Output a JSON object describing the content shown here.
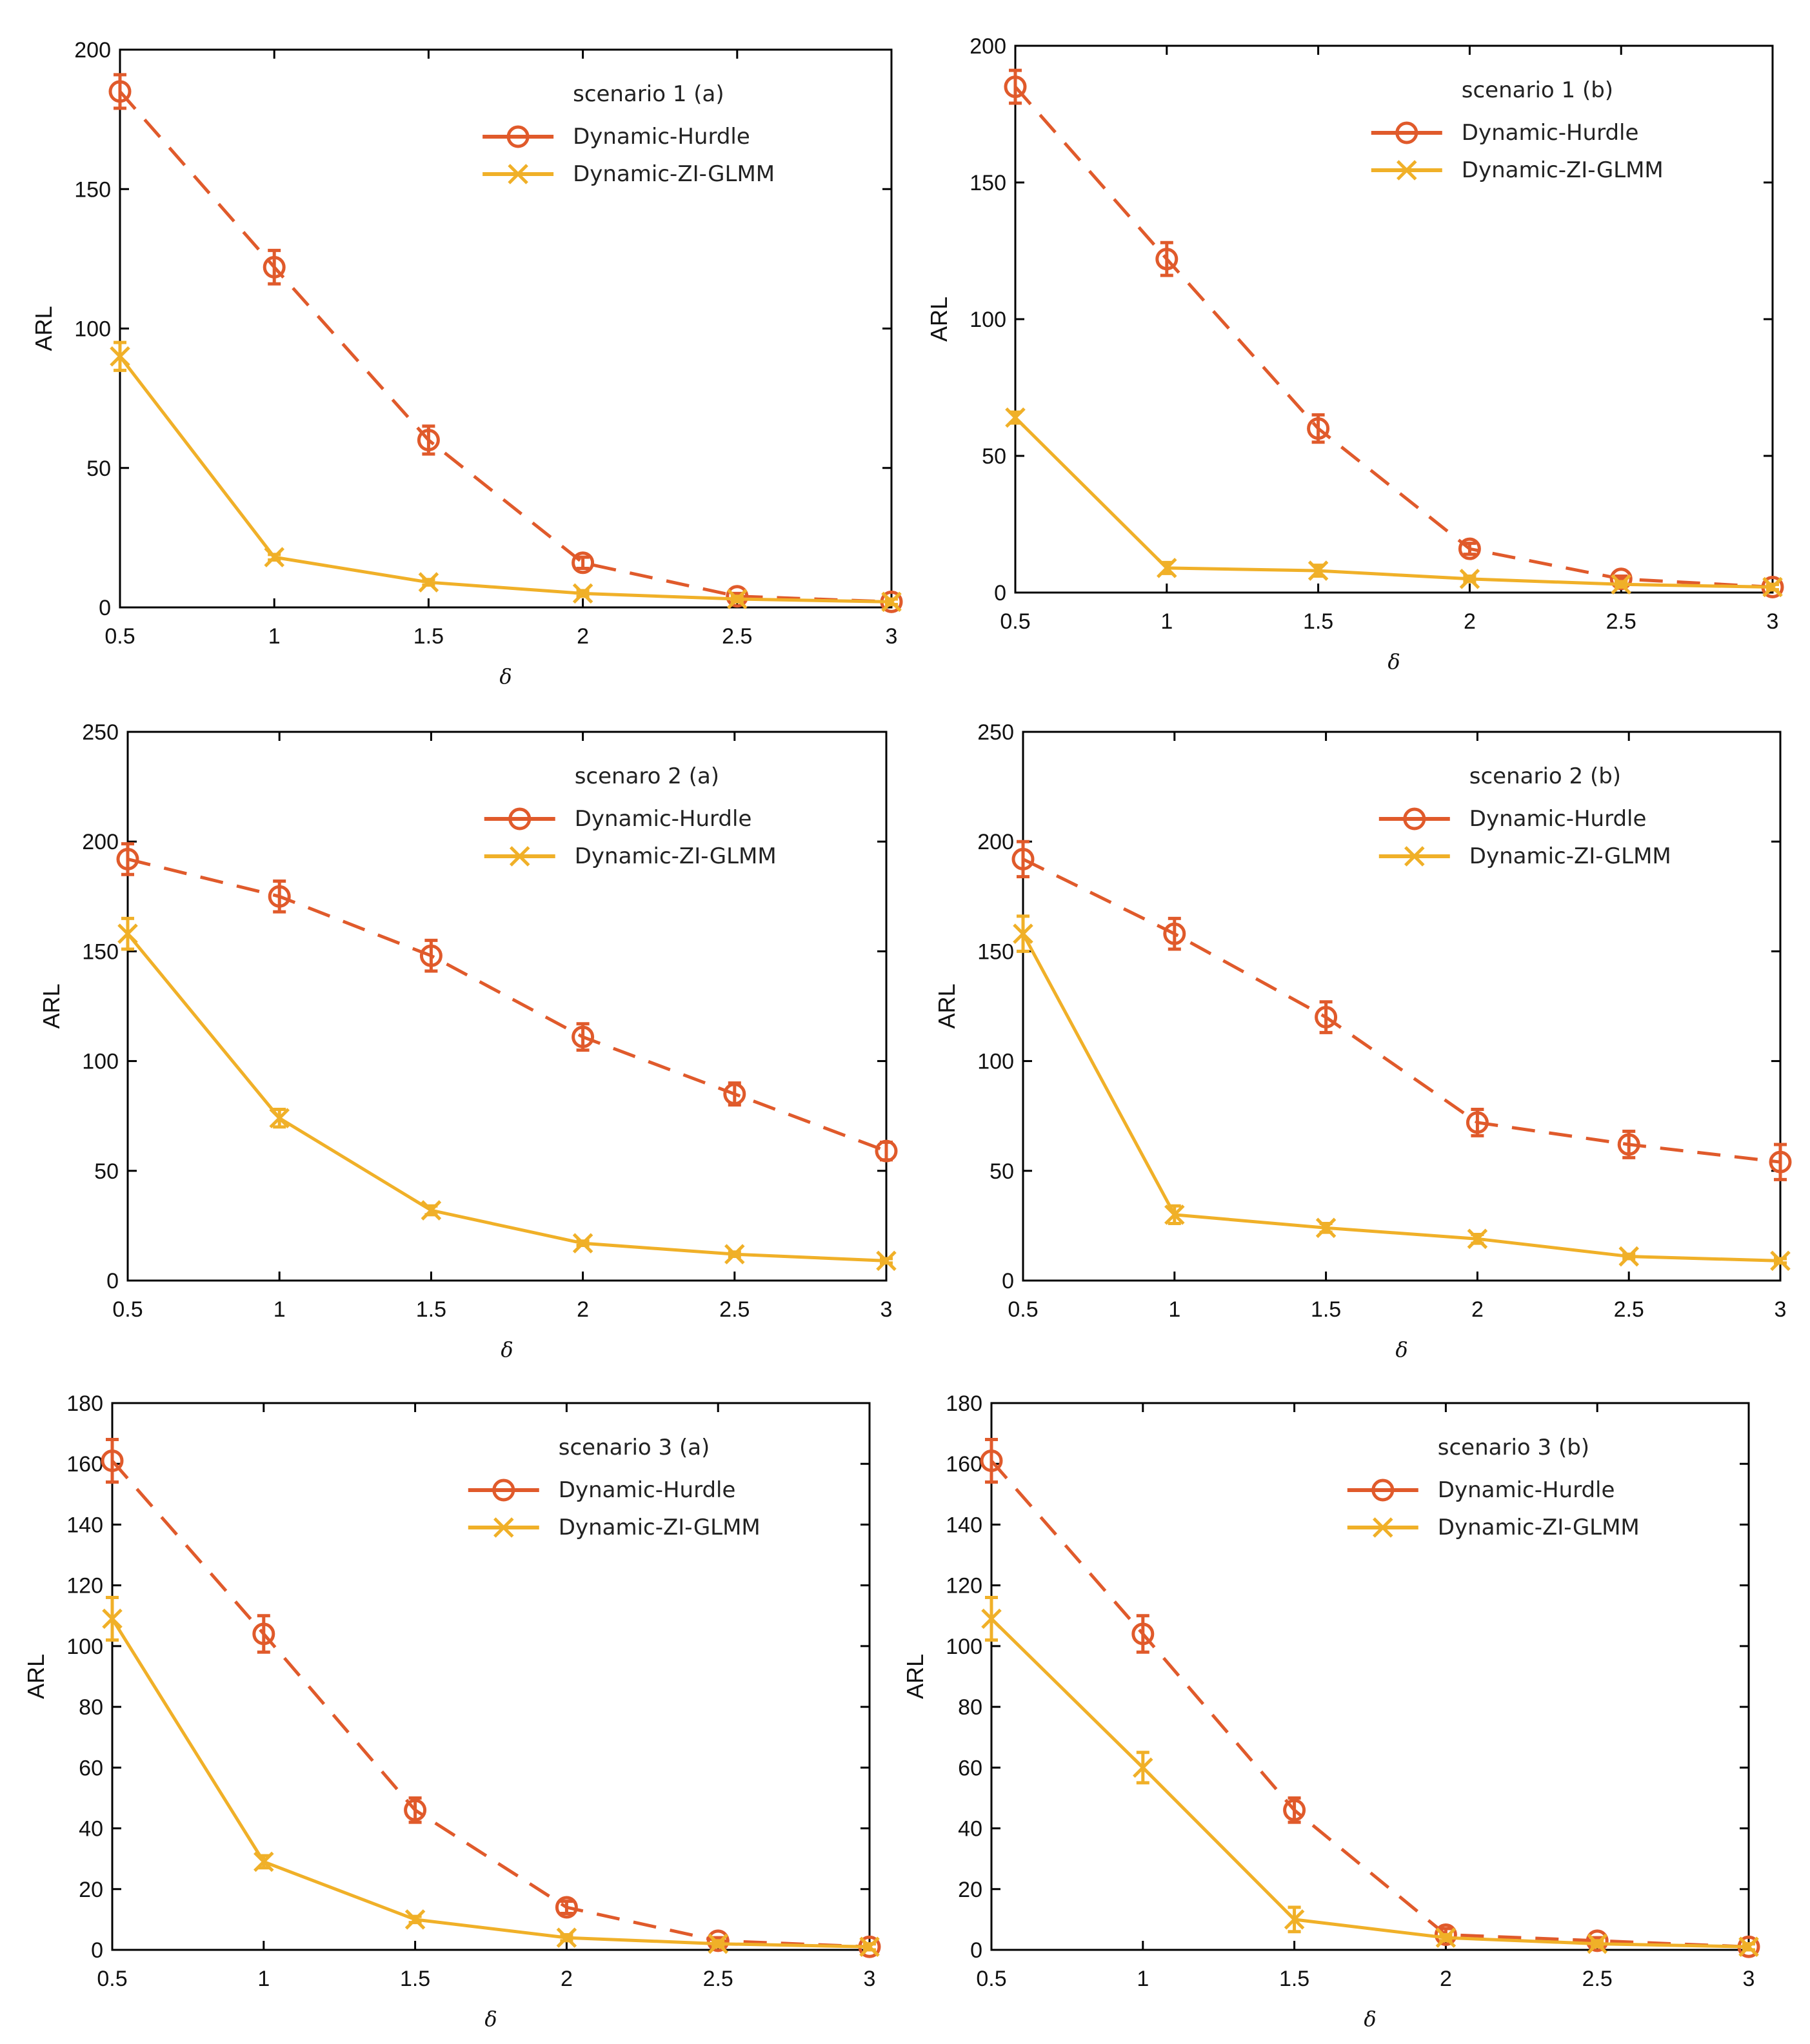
{
  "colors": {
    "hurdle": "#e05a2b",
    "zi": "#f0b028",
    "axis": "#000000"
  },
  "chart_data": [
    {
      "type": "line",
      "title": "scenario 1 (a)",
      "xlabel": "δ",
      "ylabel": "ARL",
      "x": [
        0.5,
        1,
        1.5,
        2,
        2.5,
        3
      ],
      "xlim": [
        0.5,
        3
      ],
      "ylim": [
        0,
        200
      ],
      "xticks": [
        "0.5",
        "1",
        "1.5",
        "2",
        "2.5",
        "3"
      ],
      "yticks": [
        0,
        50,
        100,
        150,
        200
      ],
      "legend_position": "top-right",
      "series": [
        {
          "name": "Dynamic-Hurdle",
          "style": "dashed",
          "marker": "circle",
          "values": [
            185,
            122,
            60,
            16,
            4,
            2
          ],
          "errors": [
            6,
            6,
            5,
            2,
            1,
            1
          ]
        },
        {
          "name": "Dynamic-ZI-GLMM",
          "style": "solid",
          "marker": "x",
          "values": [
            90,
            18,
            9,
            5,
            3,
            2
          ],
          "errors": [
            5,
            1,
            1,
            1,
            1,
            1
          ]
        }
      ]
    },
    {
      "type": "line",
      "title": "scenario 1 (b)",
      "xlabel": "δ",
      "ylabel": "ARL",
      "x": [
        0.5,
        1,
        1.5,
        2,
        2.5,
        3
      ],
      "xlim": [
        0.5,
        3
      ],
      "ylim": [
        0,
        200
      ],
      "xticks": [
        "0.5",
        "1",
        "1.5",
        "2",
        "2.5",
        "3"
      ],
      "yticks": [
        0,
        50,
        100,
        150,
        200
      ],
      "legend_position": "top-right",
      "series": [
        {
          "name": "Dynamic-Hurdle",
          "style": "dashed",
          "marker": "circle",
          "values": [
            185,
            122,
            60,
            16,
            5,
            2
          ],
          "errors": [
            6,
            6,
            5,
            2,
            1,
            1
          ]
        },
        {
          "name": "Dynamic-ZI-GLMM",
          "style": "solid",
          "marker": "x",
          "values": [
            64,
            9,
            8,
            5,
            3,
            2
          ],
          "errors": [
            2,
            2,
            2,
            1,
            1,
            1
          ]
        }
      ]
    },
    {
      "type": "line",
      "title": "scenaro 2 (a)",
      "xlabel": "δ",
      "ylabel": "ARL",
      "x": [
        0.5,
        1,
        1.5,
        2,
        2.5,
        3
      ],
      "xlim": [
        0.5,
        3
      ],
      "ylim": [
        0,
        250
      ],
      "xticks": [
        "0.5",
        "1",
        "1.5",
        "2",
        "2.5",
        "3"
      ],
      "yticks": [
        0,
        50,
        100,
        150,
        200,
        250
      ],
      "legend_position": "top-right",
      "series": [
        {
          "name": "Dynamic-Hurdle",
          "style": "dashed",
          "marker": "circle",
          "values": [
            192,
            175,
            148,
            111,
            85,
            59
          ],
          "errors": [
            7,
            7,
            7,
            6,
            5,
            4
          ]
        },
        {
          "name": "Dynamic-ZI-GLMM",
          "style": "solid",
          "marker": "x",
          "values": [
            158,
            74,
            32,
            17,
            12,
            9
          ],
          "errors": [
            7,
            4,
            2,
            1,
            1,
            1
          ]
        }
      ]
    },
    {
      "type": "line",
      "title": "scenario 2 (b)",
      "xlabel": "δ",
      "ylabel": "ARL",
      "x": [
        0.5,
        1,
        1.5,
        2,
        2.5,
        3
      ],
      "xlim": [
        0.5,
        3
      ],
      "ylim": [
        0,
        250
      ],
      "xticks": [
        "0.5",
        "1",
        "1.5",
        "2",
        "2.5",
        "3"
      ],
      "yticks": [
        0,
        50,
        100,
        150,
        200,
        250
      ],
      "legend_position": "top-right",
      "series": [
        {
          "name": "Dynamic-Hurdle",
          "style": "dashed",
          "marker": "circle",
          "values": [
            192,
            158,
            120,
            72,
            62,
            54
          ],
          "errors": [
            8,
            7,
            7,
            6,
            6,
            8
          ]
        },
        {
          "name": "Dynamic-ZI-GLMM",
          "style": "solid",
          "marker": "x",
          "values": [
            158,
            30,
            24,
            19,
            11,
            9
          ],
          "errors": [
            8,
            4,
            2,
            2,
            1,
            1
          ]
        }
      ]
    },
    {
      "type": "line",
      "title": "scenario 3 (a)",
      "xlabel": "δ",
      "ylabel": "ARL",
      "x": [
        0.5,
        1,
        1.5,
        2,
        2.5,
        3
      ],
      "xlim": [
        0.5,
        3
      ],
      "ylim": [
        0,
        180
      ],
      "xticks": [
        "0.5",
        "1",
        "1.5",
        "2",
        "2.5",
        "3"
      ],
      "yticks": [
        0,
        20,
        40,
        60,
        80,
        100,
        120,
        140,
        160,
        180
      ],
      "legend_position": "top-right",
      "series": [
        {
          "name": "Dynamic-Hurdle",
          "style": "dashed",
          "marker": "circle",
          "values": [
            161,
            104,
            46,
            14,
            3,
            1
          ],
          "errors": [
            7,
            6,
            4,
            2,
            1,
            1
          ]
        },
        {
          "name": "Dynamic-ZI-GLMM",
          "style": "solid",
          "marker": "x",
          "values": [
            109,
            29,
            10,
            4,
            2,
            1
          ],
          "errors": [
            7,
            2,
            1,
            1,
            1,
            1
          ]
        }
      ]
    },
    {
      "type": "line",
      "title": "scenario 3 (b)",
      "xlabel": "δ",
      "ylabel": "ARL",
      "x": [
        0.5,
        1,
        1.5,
        2,
        2.5,
        3
      ],
      "xlim": [
        0.5,
        3
      ],
      "ylim": [
        0,
        180
      ],
      "xticks": [
        "0.5",
        "1",
        "1.5",
        "2",
        "2.5",
        "3"
      ],
      "yticks": [
        0,
        20,
        40,
        60,
        80,
        100,
        120,
        140,
        160,
        180
      ],
      "legend_position": "top-right",
      "series": [
        {
          "name": "Dynamic-Hurdle",
          "style": "dashed",
          "marker": "circle",
          "values": [
            161,
            104,
            46,
            5,
            3,
            1
          ],
          "errors": [
            7,
            6,
            4,
            2,
            1,
            1
          ]
        },
        {
          "name": "Dynamic-ZI-GLMM",
          "style": "solid",
          "marker": "x",
          "values": [
            109,
            60,
            10,
            4,
            2,
            1
          ],
          "errors": [
            7,
            5,
            4,
            1,
            1,
            1
          ]
        }
      ]
    }
  ]
}
